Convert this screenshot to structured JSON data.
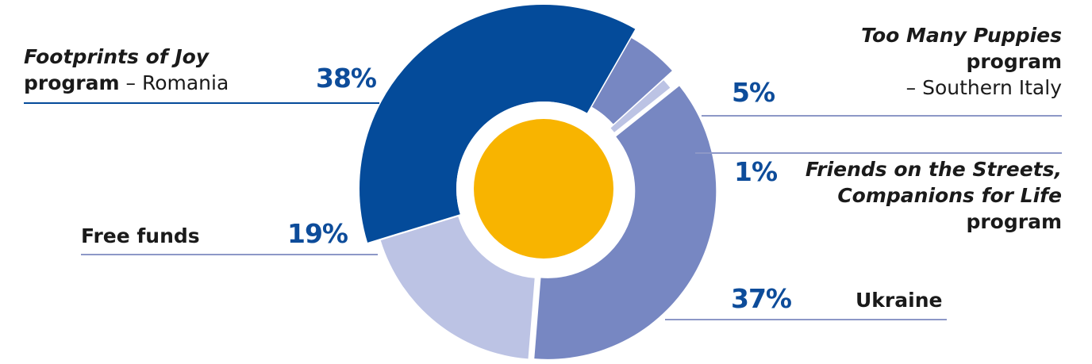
{
  "chart_data": {
    "type": "pie",
    "title": "",
    "slices": [
      {
        "label_parts": [
          "Footprints of Joy",
          "program",
          "– Romania"
        ],
        "value": 38,
        "pct_label": "38%",
        "color": "#044b9a"
      },
      {
        "label_parts": [
          "Too Many Puppies",
          "program",
          "– Southern Italy"
        ],
        "value": 5,
        "pct_label": "5%",
        "color": "#7787c2"
      },
      {
        "label_parts": [
          "Friends on the Streets,",
          "Companions for Life",
          "program"
        ],
        "value": 1,
        "pct_label": "1%",
        "color": "#bcc3e4"
      },
      {
        "label_parts": [
          "Ukraine"
        ],
        "value": 37,
        "pct_label": "37%",
        "color": "#7787c2"
      },
      {
        "label_parts": [
          "Free funds"
        ],
        "value": 19,
        "pct_label": "19%",
        "color": "#bcc3e4"
      }
    ],
    "center_color": "#f8b400",
    "leader_line_color": "#8d98c7"
  }
}
